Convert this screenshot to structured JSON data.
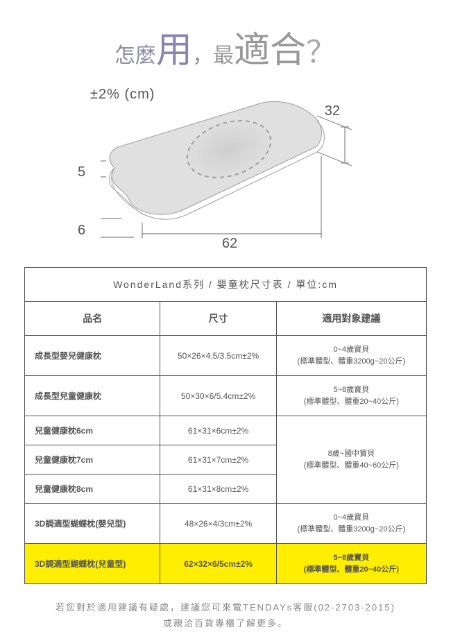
{
  "title": {
    "p1": "怎麼",
    "p2": "用",
    "comma": "，",
    "p3": "最",
    "p4": "適合",
    "q": "？"
  },
  "diagram": {
    "tolerance": "±2% (cm)",
    "dim_width": "32",
    "dim_length": "62",
    "dim_h1": "5",
    "dim_h2": "6",
    "pillow_fill": "#e0e0e0",
    "pillow_stroke": "#9e9e9e",
    "dashed_stroke": "#9e9e9e",
    "dim_line_color": "#888888"
  },
  "table": {
    "title": "WonderLand系列 / 嬰童枕尺寸表 / 單位:cm",
    "headers": {
      "name": "品名",
      "size": "尺寸",
      "target": "適用對象建議"
    },
    "rows": [
      {
        "name": "成長型嬰兒健康枕",
        "size": "50×26×4.5/3.5cm±2%",
        "target": "0~4歲寶貝\n(標準體型、體重3200g~20公斤)"
      },
      {
        "name": "成長型兒童健康枕",
        "size": "50×30×6/5.4cm±2%",
        "target": "5~8歲寶貝\n(標準體型、體重20~40公斤)"
      },
      {
        "name": "兒童健康枕6cm",
        "size": "61×31×6cm±2%",
        "target": ""
      },
      {
        "name": "兒童健康枕7cm",
        "size": "61×31×7cm±2%",
        "target": "8歲~國中寶貝\n(標準體型、體重40~60公斤)"
      },
      {
        "name": "兒童健康枕8cm",
        "size": "61×31×8cm±2%",
        "target": ""
      },
      {
        "name": "3D調適型蝴蝶枕(嬰兒型)",
        "size": "48×26×4/3cm±2%",
        "target": "0~4歲寶貝\n(標準體型、體重3200g~20公斤)"
      },
      {
        "name": "3D調適型蝴蝶枕(兒童型)",
        "size": "62×32×6/5cm±2%",
        "target": "5~8歲寶貝\n(標準體型、體重20~40公斤)",
        "highlight": true
      }
    ],
    "merged_target_row_start": 2,
    "merged_target_rowspan": 3,
    "highlight_color": "#ffee00"
  },
  "footer": {
    "line1": "若您對於適用建議有疑處，建議您可來電TENDAYs客服(02-2703-2015)",
    "line2": "或親洽百貨專櫃了解更多。"
  }
}
